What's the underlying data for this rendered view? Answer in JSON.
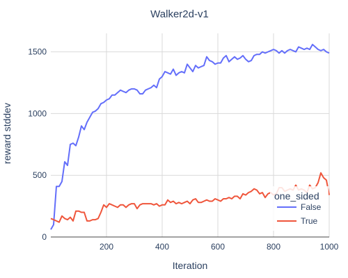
{
  "chart_data": {
    "type": "line",
    "title": "Walker2d-v1",
    "xlabel": "Iteration",
    "ylabel": "reward stddev",
    "xlim": [
      0,
      1000
    ],
    "ylim": [
      0,
      1650
    ],
    "xticks": [
      200,
      400,
      600,
      800,
      1000
    ],
    "yticks": [
      0,
      500,
      1000,
      1500
    ],
    "grid": true,
    "legend": {
      "title": "one_sided",
      "placement": "right-bottom"
    },
    "series": [
      {
        "name": "False",
        "color": "#636efa",
        "x": [
          0,
          10,
          20,
          30,
          40,
          50,
          60,
          70,
          80,
          90,
          100,
          110,
          120,
          130,
          140,
          150,
          160,
          170,
          180,
          190,
          200,
          210,
          220,
          230,
          240,
          250,
          260,
          270,
          280,
          290,
          300,
          310,
          320,
          330,
          340,
          350,
          360,
          370,
          380,
          390,
          400,
          410,
          420,
          430,
          440,
          450,
          460,
          470,
          480,
          490,
          500,
          510,
          520,
          530,
          540,
          550,
          560,
          570,
          580,
          590,
          600,
          610,
          620,
          630,
          640,
          650,
          660,
          670,
          680,
          690,
          700,
          710,
          720,
          730,
          740,
          750,
          760,
          770,
          780,
          790,
          800,
          810,
          820,
          830,
          840,
          850,
          860,
          870,
          880,
          890,
          900,
          910,
          920,
          930,
          940,
          950,
          960,
          970,
          980,
          990,
          1000
        ],
        "y": [
          60,
          100,
          410,
          410,
          450,
          610,
          580,
          750,
          760,
          740,
          810,
          900,
          870,
          930,
          970,
          1010,
          1020,
          1040,
          1080,
          1090,
          1110,
          1120,
          1150,
          1150,
          1170,
          1190,
          1180,
          1170,
          1190,
          1200,
          1200,
          1190,
          1160,
          1160,
          1190,
          1200,
          1210,
          1230,
          1210,
          1280,
          1300,
          1340,
          1330,
          1320,
          1360,
          1310,
          1330,
          1340,
          1330,
          1400,
          1370,
          1340,
          1390,
          1370,
          1380,
          1390,
          1460,
          1430,
          1420,
          1400,
          1410,
          1410,
          1450,
          1470,
          1420,
          1440,
          1460,
          1440,
          1450,
          1470,
          1440,
          1420,
          1430,
          1470,
          1480,
          1480,
          1500,
          1490,
          1500,
          1510,
          1520,
          1510,
          1490,
          1510,
          1490,
          1510,
          1520,
          1510,
          1500,
          1540,
          1530,
          1520,
          1530,
          1520,
          1560,
          1540,
          1520,
          1510,
          1520,
          1500,
          1490
        ]
      },
      {
        "name": "True",
        "color": "#ef553b",
        "x": [
          0,
          10,
          20,
          30,
          40,
          50,
          60,
          70,
          80,
          90,
          100,
          110,
          120,
          130,
          140,
          150,
          160,
          170,
          180,
          190,
          200,
          210,
          220,
          230,
          240,
          250,
          260,
          270,
          280,
          290,
          300,
          310,
          320,
          330,
          340,
          350,
          360,
          370,
          380,
          390,
          400,
          410,
          420,
          430,
          440,
          450,
          460,
          470,
          480,
          490,
          500,
          510,
          520,
          530,
          540,
          550,
          560,
          570,
          580,
          590,
          600,
          610,
          620,
          630,
          640,
          650,
          660,
          670,
          680,
          690,
          700,
          710,
          720,
          730,
          740,
          750,
          760,
          770,
          780,
          790,
          800,
          810,
          820,
          830,
          840,
          850,
          860,
          870,
          880,
          890,
          900,
          910,
          920,
          930,
          940,
          950,
          960,
          970,
          980,
          990,
          1000
        ],
        "y": [
          150,
          140,
          130,
          120,
          170,
          150,
          140,
          160,
          130,
          210,
          210,
          200,
          200,
          130,
          130,
          140,
          140,
          150,
          200,
          260,
          240,
          270,
          260,
          250,
          240,
          260,
          260,
          240,
          260,
          270,
          270,
          230,
          260,
          270,
          270,
          270,
          270,
          260,
          270,
          250,
          260,
          260,
          300,
          280,
          290,
          270,
          280,
          270,
          280,
          290,
          270,
          300,
          310,
          280,
          280,
          290,
          300,
          290,
          290,
          310,
          300,
          290,
          310,
          310,
          320,
          310,
          330,
          330,
          310,
          350,
          340,
          360,
          370,
          390,
          380,
          350,
          360,
          320,
          350,
          360,
          340,
          350,
          400,
          400,
          370,
          380,
          390,
          380,
          420,
          380,
          390,
          380,
          360,
          420,
          390,
          400,
          440,
          520,
          480,
          460,
          340
        ]
      }
    ]
  }
}
